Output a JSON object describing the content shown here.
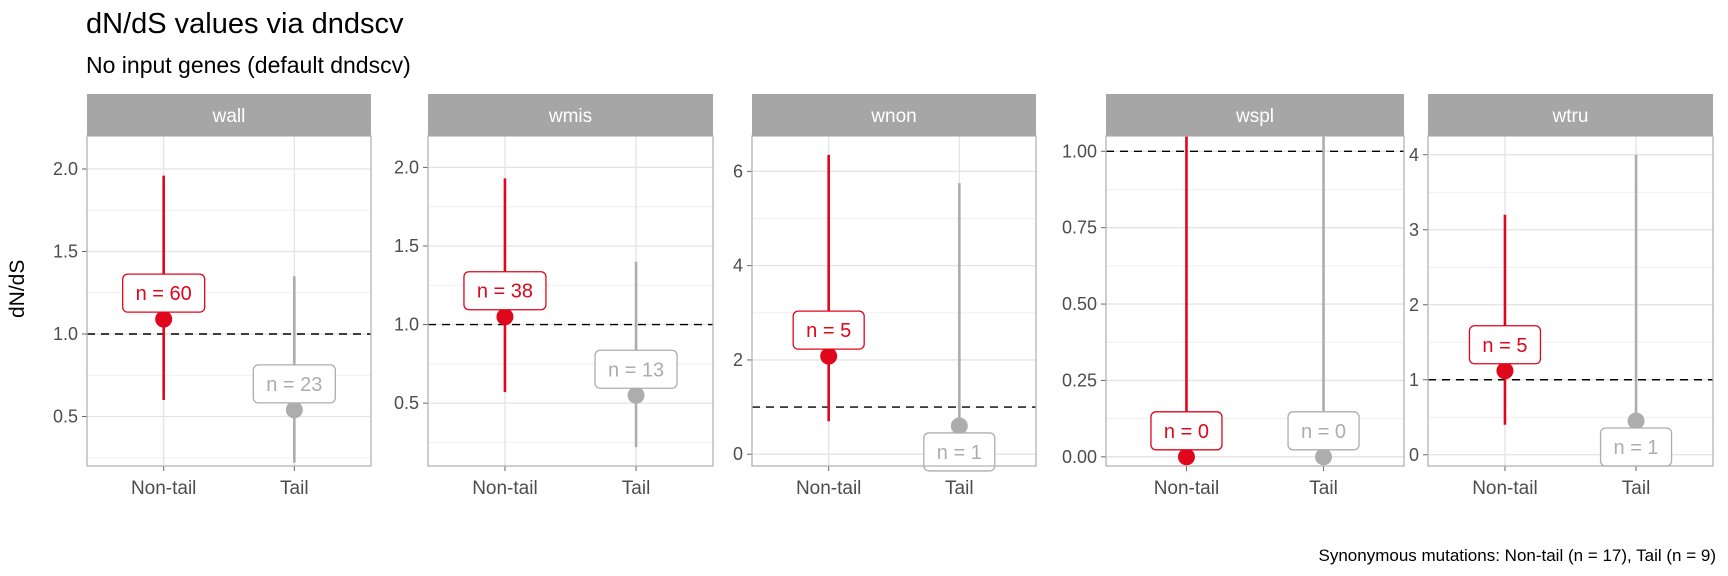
{
  "title": "dN/dS values via dndscv",
  "subtitle": "No input genes (default dndscv)",
  "caption": "Synonymous mutations: Non-tail (n = 17), Tail (n = 9)",
  "colors": {
    "nontail": "#e0061b",
    "tail": "#adadad",
    "strip": "#a6a6a6",
    "grid": "#e3e3e3",
    "border": "#b3b3b3"
  },
  "chart_data": {
    "type": "pointrange",
    "ylabel": "dN/dS",
    "categories": [
      "Non-tail",
      "Tail"
    ],
    "reference_line": 1,
    "facets": [
      {
        "name": "wall",
        "ylim": [
          0.2,
          2.2
        ],
        "ticks": [
          0.5,
          1.0,
          1.5,
          2.0
        ],
        "tick_labels": [
          "0.5",
          "1.0",
          "1.5",
          "2.0"
        ],
        "points": [
          {
            "category": "Non-tail",
            "value": 1.09,
            "low": 0.6,
            "high": 1.96,
            "label": "n = 60"
          },
          {
            "category": "Tail",
            "value": 0.54,
            "low": 0.22,
            "high": 1.35,
            "label": "n = 23"
          }
        ]
      },
      {
        "name": "wmis",
        "ylim": [
          0.1,
          2.2
        ],
        "ticks": [
          0.5,
          1.0,
          1.5,
          2.0
        ],
        "tick_labels": [
          "0.5",
          "1.0",
          "1.5",
          "2.0"
        ],
        "points": [
          {
            "category": "Non-tail",
            "value": 1.05,
            "low": 0.57,
            "high": 1.93,
            "label": "n = 38"
          },
          {
            "category": "Tail",
            "value": 0.55,
            "low": 0.22,
            "high": 1.4,
            "label": "n = 13"
          }
        ]
      },
      {
        "name": "wnon",
        "ylim": [
          -0.25,
          6.75
        ],
        "ticks": [
          0,
          2,
          4,
          6
        ],
        "tick_labels": [
          "0",
          "2",
          "4",
          "6"
        ],
        "points": [
          {
            "category": "Non-tail",
            "value": 2.08,
            "low": 0.7,
            "high": 6.35,
            "label": "n = 5"
          },
          {
            "category": "Tail",
            "value": 0.6,
            "low": 0.08,
            "high": 5.75,
            "label": "n = 1"
          }
        ]
      },
      {
        "name": "wspl",
        "ylim": [
          -0.03,
          1.05
        ],
        "ticks": [
          0.0,
          0.25,
          0.5,
          0.75,
          1.0
        ],
        "tick_labels": [
          "0.00",
          "0.25",
          "0.50",
          "0.75",
          "1.00"
        ],
        "points": [
          {
            "category": "Non-tail",
            "value": 0.0,
            "low": 0.0,
            "high": 1.05,
            "label": "n = 0"
          },
          {
            "category": "Tail",
            "value": 0.0,
            "low": 0.0,
            "high": 1.05,
            "label": "n = 0"
          }
        ]
      },
      {
        "name": "wtru",
        "ylim": [
          -0.15,
          4.25
        ],
        "ticks": [
          0,
          1,
          2,
          3,
          4
        ],
        "tick_labels": [
          "0",
          "1",
          "2",
          "3",
          "4"
        ],
        "points": [
          {
            "category": "Non-tail",
            "value": 1.12,
            "low": 0.4,
            "high": 3.2,
            "label": "n = 5"
          },
          {
            "category": "Tail",
            "value": 0.45,
            "low": 0.05,
            "high": 4.0,
            "label": "n = 1"
          }
        ]
      }
    ]
  }
}
